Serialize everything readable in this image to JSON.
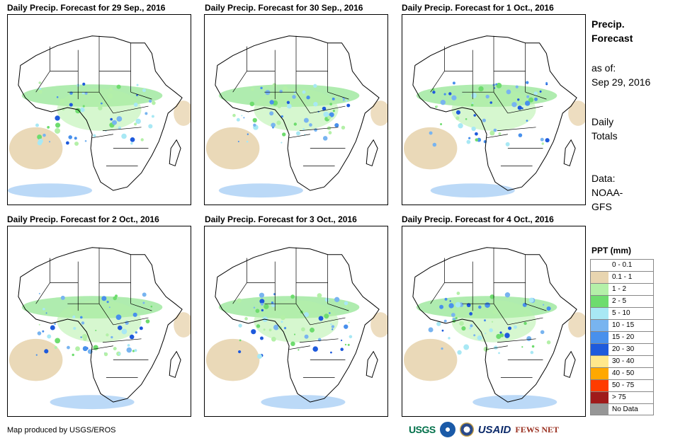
{
  "panels": [
    {
      "title": "Daily Precip. Forecast for 29 Sep., 2016",
      "variant": 0
    },
    {
      "title": "Daily Precip. Forecast for 30 Sep., 2016",
      "variant": 1
    },
    {
      "title": "Daily Precip. Forecast for 1 Oct., 2016",
      "variant": 2
    },
    {
      "title": "Daily Precip. Forecast for 2 Oct., 2016",
      "variant": 3
    },
    {
      "title": "Daily Precip. Forecast for 3 Oct., 2016",
      "variant": 4
    },
    {
      "title": "Daily Precip. Forecast for 4 Oct., 2016",
      "variant": 5
    }
  ],
  "sidebar": {
    "title_line1": "Precip.",
    "title_line2": "Forecast",
    "asof_label": "as of:",
    "asof_date": "Sep 29, 2016",
    "totals_line1": "Daily",
    "totals_line2": "Totals",
    "data_line1": "Data:",
    "data_line2": "NOAA-",
    "data_line3": "GFS"
  },
  "legend": {
    "title": "PPT (mm)",
    "items": [
      {
        "label": "0 - 0.1",
        "color": "#ffffff"
      },
      {
        "label": "0.1 - 1",
        "color": "#e8d5b0"
      },
      {
        "label": "1 - 2",
        "color": "#b4f0a8"
      },
      {
        "label": "2 - 5",
        "color": "#6edc6e"
      },
      {
        "label": "5 - 10",
        "color": "#a8e8f4"
      },
      {
        "label": "10 - 15",
        "color": "#78b4f0"
      },
      {
        "label": "15 - 20",
        "color": "#4890ec"
      },
      {
        "label": "20 - 30",
        "color": "#1e5adc"
      },
      {
        "label": "30 - 40",
        "color": "#ffe88c"
      },
      {
        "label": "40 - 50",
        "color": "#ffa800"
      },
      {
        "label": "50 - 75",
        "color": "#ff3c00"
      },
      {
        "label": "> 75",
        "color": "#a01a1a"
      },
      {
        "label": "No Data",
        "color": "#969696"
      }
    ]
  },
  "credit": "Map produced by USGS/EROS",
  "logos": {
    "usgs": "USGS",
    "usaid": "USAID",
    "fews": "FEWS NET"
  }
}
